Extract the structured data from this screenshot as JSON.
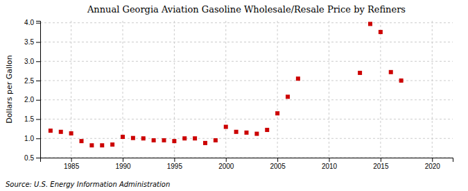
{
  "chart_data": {
    "type": "scatter",
    "title": "Annual Georgia Aviation Gasoline Wholesale/Resale Price by Refiners",
    "ylabel": "Dollars per Gallon",
    "annotations": [
      "Source: U.S. Energy Information Administration"
    ],
    "x": [
      1983,
      1984,
      1985,
      1986,
      1987,
      1988,
      1989,
      1990,
      1991,
      1992,
      1993,
      1994,
      1995,
      1996,
      1997,
      1998,
      1999,
      2000,
      2001,
      2002,
      2003,
      2004,
      2005,
      2006,
      2007,
      2013,
      2014,
      2015,
      2016,
      2017
    ],
    "values": [
      1.2,
      1.17,
      1.13,
      0.93,
      0.82,
      0.82,
      0.84,
      1.04,
      1.01,
      1.0,
      0.95,
      0.95,
      0.93,
      1.0,
      1.0,
      0.88,
      0.95,
      1.3,
      1.17,
      1.15,
      1.12,
      1.22,
      1.65,
      2.08,
      2.55,
      2.7,
      3.97,
      3.76,
      2.72,
      2.5
    ],
    "color": "#cc0000",
    "marker": "square",
    "xlim": [
      1982,
      2022
    ],
    "ylim": [
      0.5,
      4.05
    ],
    "xticks": [
      1985,
      1990,
      1995,
      2000,
      2005,
      2010,
      2015,
      2020
    ],
    "yticks": [
      0.5,
      {
        "value": 1.0,
        "label": "1.0"
      },
      1.5,
      {
        "value": 2.0,
        "label": "2.0"
      },
      2.5,
      {
        "value": 3.0,
        "label": "3.0"
      },
      3.5,
      {
        "value": 4.0,
        "label": "4.0"
      }
    ],
    "grid": true
  }
}
